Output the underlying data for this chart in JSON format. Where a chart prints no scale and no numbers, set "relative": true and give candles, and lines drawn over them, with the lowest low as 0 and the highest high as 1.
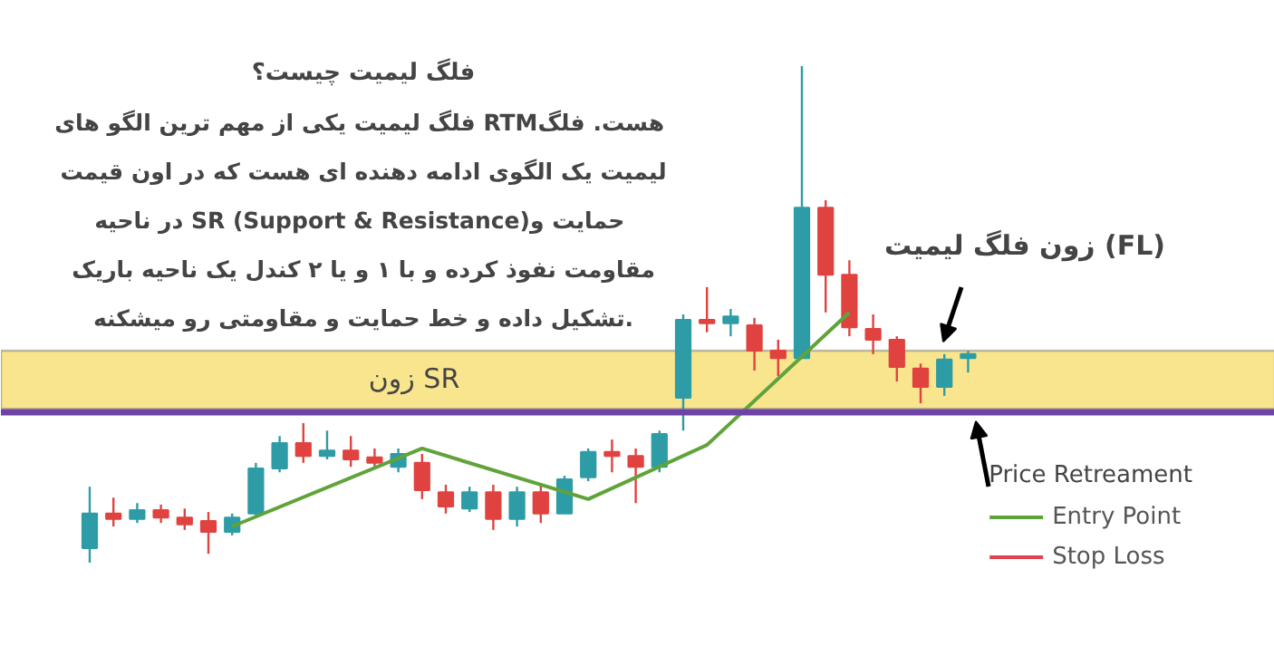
{
  "chart_data": {
    "type": "candlestick",
    "relative": true,
    "title": "فلگ لیمیت چیست؟",
    "annotations": [
      "فلگ لیمیت یکی از مهم ترین الگو های  RTMهست. فلگ",
      "لیمیت یک الگوی ادامه دهنده ای هست که در اون قیمت",
      "در ناحیه  SR (Support & Resistance)حمایت و",
      "مقاومت نفوذ کرده و با ۱ و یا ۲ کندل یک ناحیه باریک",
      "تشکیل داده و خط حمایت و مقاومتی رو میشکنه."
    ],
    "categories": [
      null,
      null,
      null,
      null,
      null,
      null,
      null,
      null,
      null,
      null,
      null,
      null,
      null,
      null,
      null,
      null,
      null,
      null,
      null,
      null,
      null,
      null,
      null,
      null,
      null,
      null,
      null,
      null,
      null,
      null,
      null,
      null,
      null,
      null,
      null,
      null,
      null,
      null
    ],
    "ohlc": [
      [
        0.029,
        0.153,
        0,
        0.099
      ],
      [
        0.099,
        0.131,
        0.073,
        0.088
      ],
      [
        0.088,
        0.12,
        0.08,
        0.106
      ],
      [
        0.106,
        0.117,
        0.08,
        0.091
      ],
      [
        0.091,
        0.109,
        0.066,
        0.077
      ],
      [
        0.084,
        0.102,
        0.018,
        0.062
      ],
      [
        0.062,
        0.099,
        0.055,
        0.091
      ],
      [
        0.099,
        0.201,
        0.091,
        0.19
      ],
      [
        0.19,
        0.255,
        0.182,
        0.241
      ],
      [
        0.241,
        0.281,
        0.201,
        0.215
      ],
      [
        0.215,
        0.266,
        0.208,
        0.226
      ],
      [
        0.226,
        0.255,
        0.193,
        0.208
      ],
      [
        0.212,
        0.23,
        0.19,
        0.201
      ],
      [
        0.193,
        0.23,
        0.182,
        0.219
      ],
      [
        0.201,
        0.219,
        0.128,
        0.146
      ],
      [
        0.142,
        0.157,
        0.099,
        0.113
      ],
      [
        0.109,
        0.153,
        0.102,
        0.142
      ],
      [
        0.142,
        0.157,
        0.066,
        0.088
      ],
      [
        0.088,
        0.153,
        0.073,
        0.142
      ],
      [
        0.142,
        0.157,
        0.08,
        0.099
      ],
      [
        0.099,
        0.175,
        0.099,
        0.168
      ],
      [
        0.172,
        0.23,
        0.164,
        0.223
      ],
      [
        0.223,
        0.248,
        0.182,
        0.215
      ],
      [
        0.215,
        0.23,
        0.12,
        0.193
      ],
      [
        0.193,
        0.266,
        0.182,
        0.259
      ],
      [
        0.332,
        0.5,
        0.266,
        0.489
      ],
      [
        0.489,
        0.555,
        0.464,
        0.482
      ],
      [
        0.482,
        0.511,
        0.456,
        0.496
      ],
      [
        0.478,
        0.493,
        0.387,
        0.427
      ],
      [
        0.427,
        0.449,
        0.376,
        0.412
      ],
      [
        0.412,
        1.0,
        0.412,
        0.715
      ],
      [
        0.715,
        0.73,
        0.504,
        0.58
      ],
      [
        0.58,
        0.609,
        0.456,
        0.474
      ],
      [
        0.471,
        0.5,
        0.42,
        0.449
      ],
      [
        0.449,
        0.456,
        0.365,
        0.394
      ],
      [
        0.391,
        0.401,
        0.321,
        0.354
      ],
      [
        0.354,
        0.42,
        0.336,
        0.409
      ],
      [
        0.412,
        0.427,
        0.383,
        0.42
      ]
    ],
    "colors": [
      "#2e9ca6",
      "#e0433f",
      "#2e9ca6",
      "#e0433f",
      "#e0433f",
      "#e0433f",
      "#2e9ca6",
      "#2e9ca6",
      "#2e9ca6",
      "#e0433f",
      "#2e9ca6",
      "#e0433f",
      "#e0433f",
      "#2e9ca6",
      "#e0433f",
      "#e0433f",
      "#2e9ca6",
      "#e0433f",
      "#2e9ca6",
      "#e0433f",
      "#2e9ca6",
      "#2e9ca6",
      "#e0433f",
      "#e0433f",
      "#2e9ca6",
      "#2e9ca6",
      "#e0433f",
      "#2e9ca6",
      "#e0433f",
      "#e0433f",
      "#2e9ca6",
      "#e0433f",
      "#e0433f",
      "#e0433f",
      "#e0433f",
      "#e0433f",
      "#2e9ca6",
      "#2e9ca6"
    ],
    "series": [
      {
        "name": "Entry Point",
        "type": "line",
        "color": "#5fa33a",
        "values": [
          null,
          null,
          null,
          null,
          null,
          null,
          0.073,
          null,
          null,
          null,
          null,
          null,
          null,
          null,
          0.23,
          null,
          null,
          null,
          null,
          null,
          null,
          0.128,
          null,
          null,
          null,
          null,
          0.237,
          null,
          null,
          null,
          null,
          null,
          0.504,
          null,
          null,
          null,
          null,
          null
        ]
      },
      {
        "name": "Stop Loss",
        "type": "line",
        "color": "#e0434f",
        "values": [
          null,
          null,
          null,
          null,
          null,
          null,
          null,
          null,
          null,
          null,
          null,
          null,
          null,
          null,
          null,
          null,
          null,
          null,
          null,
          null,
          null,
          null,
          null,
          null,
          null,
          null,
          null,
          null,
          null,
          null,
          null,
          null,
          null,
          null,
          null,
          null,
          null,
          null
        ]
      }
    ],
    "ref_lines": [
      {
        "axis": "y",
        "value": 0.303,
        "label": "زون SR",
        "color": "#6f42a8"
      }
    ],
    "bands": [
      {
        "axis": "y",
        "from": 0.31,
        "to": 0.427,
        "label": "زون فلگ لیمیت (FL)",
        "color": "#f7e07a"
      }
    ],
    "legend_title": "Price Retreament",
    "legend": "bottom right"
  }
}
